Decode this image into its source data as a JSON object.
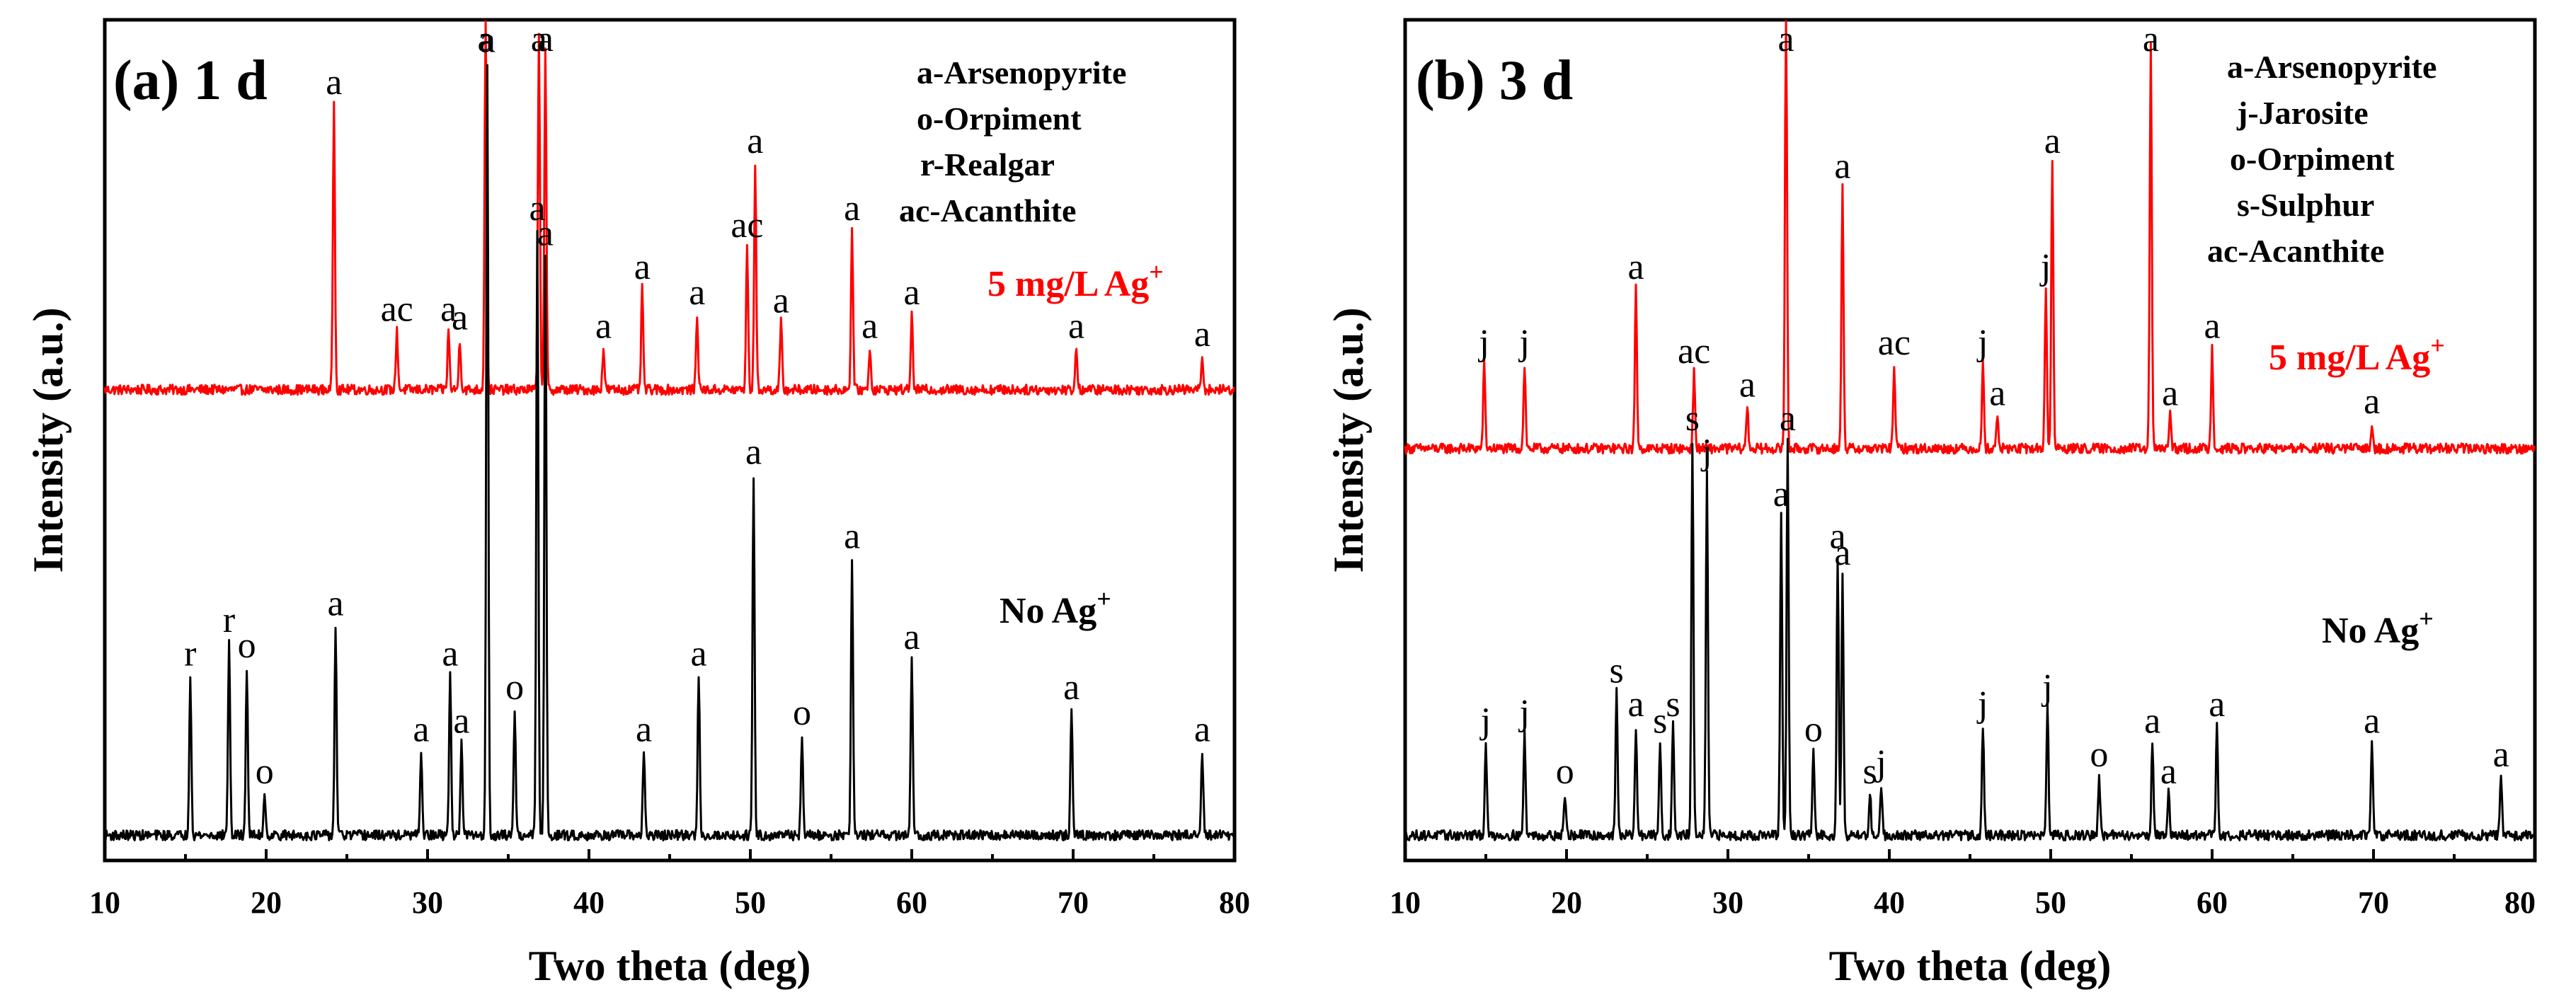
{
  "chart_data": [
    {
      "type": "line",
      "panel": "a",
      "title": "(a) 1 d",
      "xlabel": "Two theta (deg)",
      "ylabel": "Intensity (a.u.)",
      "xlim": [
        10,
        80
      ],
      "xticks": [
        10,
        20,
        30,
        40,
        50,
        60,
        70,
        80
      ],
      "legend": [
        "a-Arsenopyrite",
        "o-Orpiment",
        "r-Realgar",
        "ac-Acanthite"
      ],
      "series": [
        {
          "name": "5 mg/L Ag+",
          "label_main": "5 mg/L Ag",
          "label_sup": "+",
          "color": "#ff0000",
          "baseline": 0.56,
          "peaks": [
            {
              "x": 24.2,
              "h": 0.34,
              "label": "a"
            },
            {
              "x": 28.1,
              "h": 0.07,
              "label": "ac"
            },
            {
              "x": 31.3,
              "h": 0.07,
              "label": "a"
            },
            {
              "x": 32.0,
              "h": 0.06,
              "label": "a"
            },
            {
              "x": 33.6,
              "h": 0.45,
              "label": "a"
            },
            {
              "x": 36.9,
              "h": 0.42,
              "label": "a"
            },
            {
              "x": 37.3,
              "h": 0.4,
              "label": "a"
            },
            {
              "x": 40.9,
              "h": 0.05,
              "label": "a"
            },
            {
              "x": 43.3,
              "h": 0.12,
              "label": "a"
            },
            {
              "x": 46.7,
              "h": 0.09,
              "label": "a"
            },
            {
              "x": 49.8,
              "h": 0.17,
              "label": "ac"
            },
            {
              "x": 50.3,
              "h": 0.27,
              "label": "a"
            },
            {
              "x": 51.9,
              "h": 0.08,
              "label": "a"
            },
            {
              "x": 56.3,
              "h": 0.19,
              "label": "a"
            },
            {
              "x": 57.4,
              "h": 0.05,
              "label": "a"
            },
            {
              "x": 60.0,
              "h": 0.09,
              "label": "a"
            },
            {
              "x": 70.2,
              "h": 0.05,
              "label": "a"
            },
            {
              "x": 78.0,
              "h": 0.04,
              "label": "a"
            }
          ]
        },
        {
          "name": "No Ag+",
          "label_main": "No Ag",
          "label_sup": "+",
          "color": "#000000",
          "baseline": 0.03,
          "peaks": [
            {
              "x": 15.3,
              "h": 0.19,
              "label": "r"
            },
            {
              "x": 17.7,
              "h": 0.23,
              "label": "r"
            },
            {
              "x": 18.8,
              "h": 0.2,
              "label": "o"
            },
            {
              "x": 19.9,
              "h": 0.05,
              "label": "o"
            },
            {
              "x": 24.3,
              "h": 0.25,
              "label": "a"
            },
            {
              "x": 29.6,
              "h": 0.1,
              "label": "a"
            },
            {
              "x": 31.4,
              "h": 0.19,
              "label": "a"
            },
            {
              "x": 32.1,
              "h": 0.11,
              "label": "a"
            },
            {
              "x": 33.7,
              "h": 0.92,
              "label": "a"
            },
            {
              "x": 35.4,
              "h": 0.15,
              "label": "o"
            },
            {
              "x": 36.8,
              "h": 0.72,
              "label": "a"
            },
            {
              "x": 37.3,
              "h": 0.69,
              "label": "a"
            },
            {
              "x": 43.4,
              "h": 0.1,
              "label": "a"
            },
            {
              "x": 46.8,
              "h": 0.19,
              "label": "a"
            },
            {
              "x": 50.2,
              "h": 0.43,
              "label": "a"
            },
            {
              "x": 53.2,
              "h": 0.12,
              "label": "o"
            },
            {
              "x": 56.3,
              "h": 0.33,
              "label": "a"
            },
            {
              "x": 60.0,
              "h": 0.21,
              "label": "a"
            },
            {
              "x": 69.9,
              "h": 0.15,
              "label": "a"
            },
            {
              "x": 78.0,
              "h": 0.1,
              "label": "a"
            }
          ]
        }
      ]
    },
    {
      "type": "line",
      "panel": "b",
      "title": "(b) 3 d",
      "xlabel": "Two theta (deg)",
      "ylabel": "Intensity (a.u.)",
      "xlim": [
        10,
        80
      ],
      "xticks": [
        10,
        20,
        30,
        40,
        50,
        60,
        70,
        80
      ],
      "legend": [
        "a-Arsenopyrite",
        "j-Jarosite",
        "o-Orpiment",
        "s-Sulphur",
        "ac-Acanthite"
      ],
      "series": [
        {
          "name": "5 mg/L Ag+",
          "label_main": "5 mg/L Ag",
          "label_sup": "+",
          "color": "#ff0000",
          "baseline": 0.49,
          "peaks": [
            {
              "x": 14.9,
              "h": 0.1,
              "label": "j"
            },
            {
              "x": 17.4,
              "h": 0.1,
              "label": "j"
            },
            {
              "x": 24.3,
              "h": 0.19,
              "label": "a"
            },
            {
              "x": 27.9,
              "h": 0.09,
              "label": "ac"
            },
            {
              "x": 31.2,
              "h": 0.05,
              "label": "a"
            },
            {
              "x": 33.6,
              "h": 0.53,
              "label": "a"
            },
            {
              "x": 37.1,
              "h": 0.31,
              "label": "a"
            },
            {
              "x": 40.3,
              "h": 0.1,
              "label": "ac"
            },
            {
              "x": 45.8,
              "h": 0.1,
              "label": "j"
            },
            {
              "x": 46.7,
              "h": 0.04,
              "label": "a"
            },
            {
              "x": 49.7,
              "h": 0.19,
              "label": "j"
            },
            {
              "x": 50.1,
              "h": 0.34,
              "label": "a"
            },
            {
              "x": 56.2,
              "h": 0.48,
              "label": "a"
            },
            {
              "x": 57.4,
              "h": 0.04,
              "label": "a"
            },
            {
              "x": 60.0,
              "h": 0.12,
              "label": "a"
            },
            {
              "x": 69.9,
              "h": 0.03,
              "label": "a"
            }
          ]
        },
        {
          "name": "No Ag+",
          "label_main": "No Ag",
          "label_sup": "+",
          "color": "#000000",
          "baseline": 0.03,
          "peaks": [
            {
              "x": 15.0,
              "h": 0.11,
              "label": "j"
            },
            {
              "x": 17.4,
              "h": 0.12,
              "label": "j"
            },
            {
              "x": 19.9,
              "h": 0.05,
              "label": "o"
            },
            {
              "x": 23.1,
              "h": 0.17,
              "label": "s"
            },
            {
              "x": 24.3,
              "h": 0.13,
              "label": "a"
            },
            {
              "x": 25.8,
              "h": 0.11,
              "label": "s"
            },
            {
              "x": 26.6,
              "h": 0.13,
              "label": "s"
            },
            {
              "x": 27.8,
              "h": 0.47,
              "label": "s"
            },
            {
              "x": 28.7,
              "h": 0.43,
              "label": "j"
            },
            {
              "x": 33.3,
              "h": 0.38,
              "label": "a"
            },
            {
              "x": 33.7,
              "h": 0.47,
              "label": "a"
            },
            {
              "x": 35.3,
              "h": 0.1,
              "label": "o"
            },
            {
              "x": 36.8,
              "h": 0.33,
              "label": "a"
            },
            {
              "x": 37.1,
              "h": 0.31,
              "label": "a"
            },
            {
              "x": 38.8,
              "h": 0.05,
              "label": "s"
            },
            {
              "x": 39.5,
              "h": 0.06,
              "label": "j"
            },
            {
              "x": 45.8,
              "h": 0.13,
              "label": "j"
            },
            {
              "x": 49.8,
              "h": 0.15,
              "label": "j"
            },
            {
              "x": 53.0,
              "h": 0.07,
              "label": "o"
            },
            {
              "x": 56.3,
              "h": 0.11,
              "label": "a"
            },
            {
              "x": 57.3,
              "h": 0.05,
              "label": "a"
            },
            {
              "x": 60.3,
              "h": 0.13,
              "label": "a"
            },
            {
              "x": 69.9,
              "h": 0.11,
              "label": "a"
            },
            {
              "x": 77.9,
              "h": 0.07,
              "label": "a"
            }
          ]
        }
      ]
    }
  ]
}
